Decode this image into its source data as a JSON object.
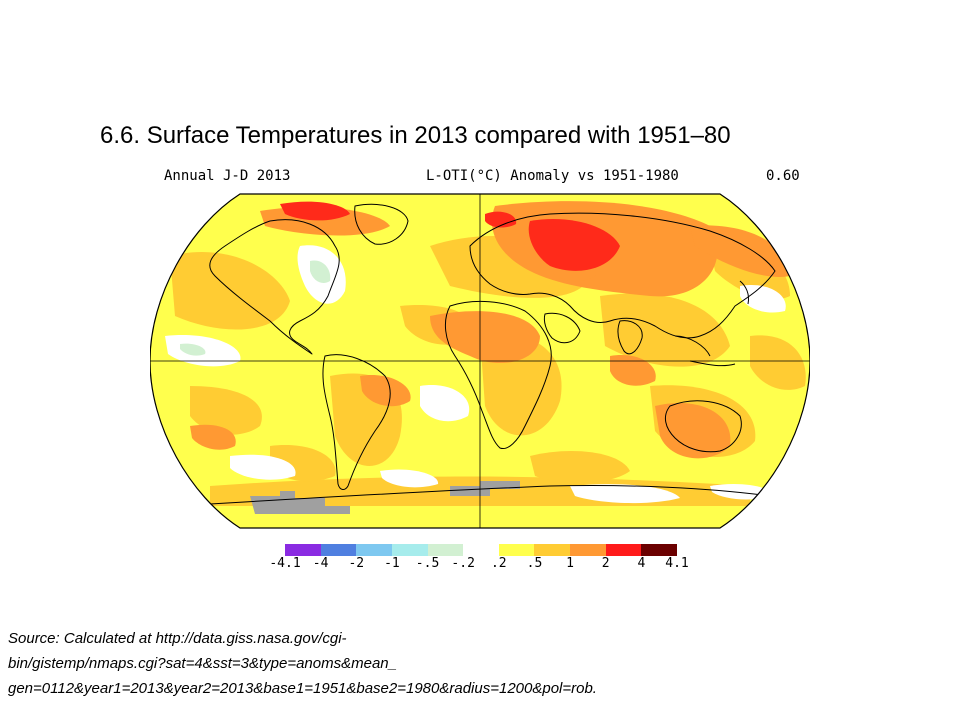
{
  "slide": {
    "title": "6.6. Surface Temperatures in 2013 compared with 1951–80"
  },
  "map": {
    "header_left": "Annual J-D 2013",
    "header_center": "L-OTI(°C) Anomaly vs 1951-1980",
    "header_right": "0.60",
    "projection": "Robinson",
    "colors": {
      "ocean_mild": "#ffff4d",
      "moderate": "#ffcc33",
      "warm": "#ff9933",
      "hot": "#ff2a1a",
      "near_zero": "#ffffff",
      "slightly_cool": "#d2f0d2",
      "no_data": "#a0a0a0",
      "coastline": "#000000"
    }
  },
  "legend": {
    "bins": [
      {
        "color": "#8a2be2",
        "label": ""
      },
      {
        "color": "#4f7fe0",
        "label": ""
      },
      {
        "color": "#7ec8f0",
        "label": ""
      },
      {
        "color": "#a6ecec",
        "label": ""
      },
      {
        "color": "#d2f0d2",
        "label": ""
      },
      {
        "color": "#ffffff",
        "label": ""
      },
      {
        "color": "#ffff4d",
        "label": ""
      },
      {
        "color": "#ffcc33",
        "label": ""
      },
      {
        "color": "#ff9933",
        "label": ""
      },
      {
        "color": "#ff1a1a",
        "label": ""
      },
      {
        "color": "#6b0000",
        "label": ""
      }
    ],
    "tick_labels": [
      "-4.1",
      "-4",
      "-2",
      "-1",
      "-.5",
      "-.2",
      ".2",
      ".5",
      "1",
      "2",
      "4",
      "4.1"
    ]
  },
  "source": {
    "line1": "Source: Calculated at http://data.giss.nasa.gov/cgi-",
    "line2": "bin/gistemp/nmaps.cgi?sat=4&sst=3&type=anoms&mean_",
    "line3": "gen=0112&year1=2013&year2=2013&base1=1951&base2=1980&radius=1200&pol=rob."
  }
}
